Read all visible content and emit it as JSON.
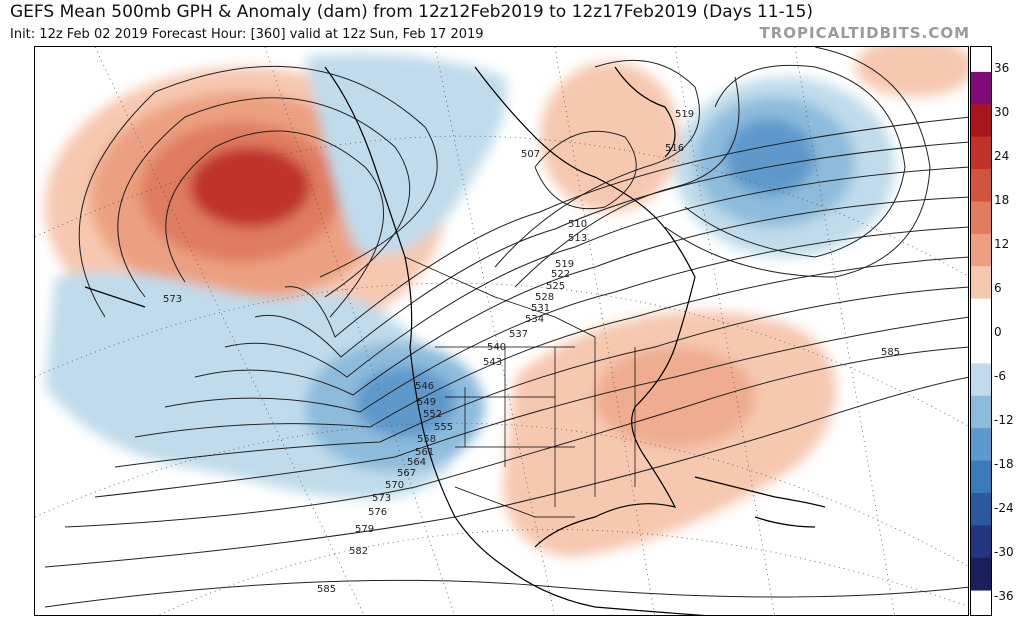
{
  "header": {
    "title": "GEFS Mean 500mb GPH & Anomaly (dam) from 12z12Feb2019 to 12z17Feb2019 (Days 11-15)",
    "subtitle": "Init: 12z Feb 02 2019   Forecast Hour: [360]   valid at 12z Sun, Feb 17 2019",
    "brand": "TROPICALTIDBITS.COM"
  },
  "colorbar": {
    "ticks": [
      "36",
      "30",
      "24",
      "18",
      "12",
      "6",
      "0",
      "-6",
      "-12",
      "-18",
      "-24",
      "-30",
      "-36"
    ],
    "colors": [
      "#1a1f5e",
      "#23367f",
      "#2c58a0",
      "#3a79bb",
      "#5e99cc",
      "#8dbbdc",
      "#c0dbeb",
      "#ffffff",
      "#f6c8b0",
      "#eca081",
      "#e07c60",
      "#d0543e",
      "#c0322a",
      "#a8151c",
      "#800a78"
    ]
  },
  "contour_labels": [
    "507",
    "510",
    "513",
    "516",
    "519",
    "519",
    "522",
    "525",
    "528",
    "531",
    "534",
    "537",
    "540",
    "543",
    "546",
    "549",
    "552",
    "555",
    "558",
    "561",
    "564",
    "567",
    "570",
    "573",
    "573",
    "576",
    "579",
    "582",
    "585",
    "585"
  ]
}
